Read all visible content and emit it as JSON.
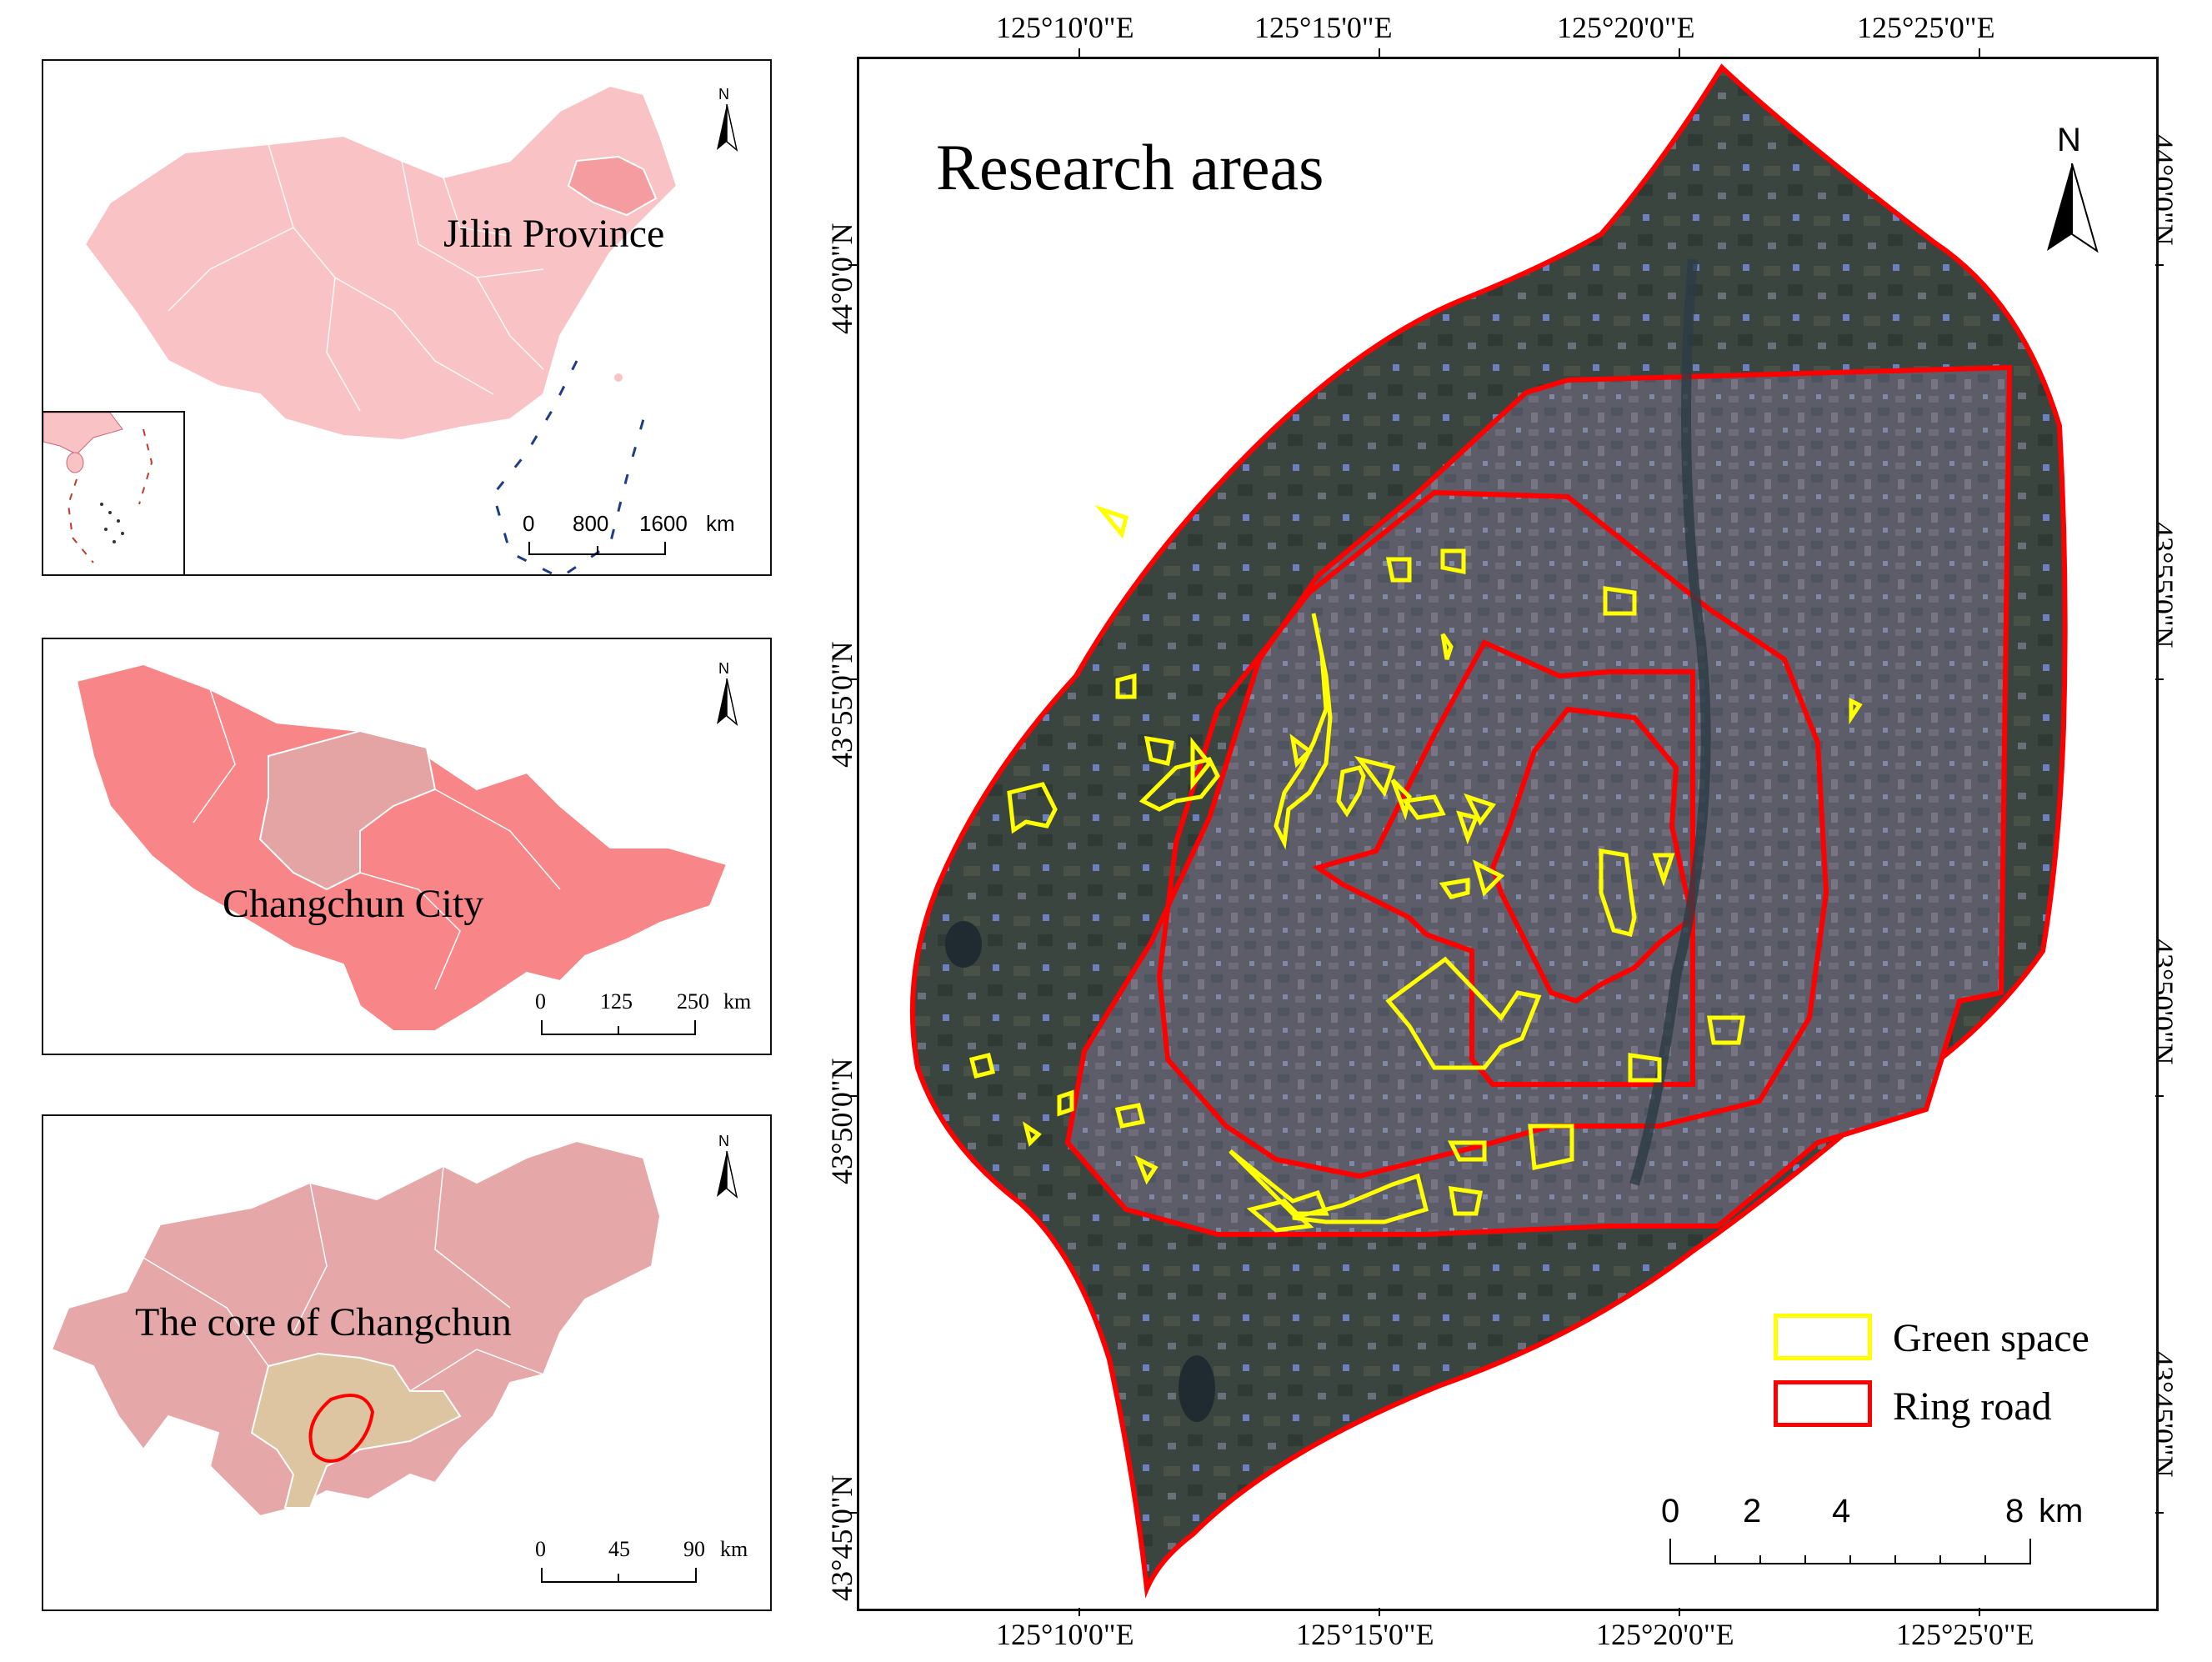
{
  "inset_china": {
    "label": "Jilin Province",
    "north": "N",
    "scale": {
      "ticks": [
        "0",
        "800",
        "1600"
      ],
      "unit": "km"
    }
  },
  "inset_jilin": {
    "label": "Changchun City",
    "north": "N",
    "scale": {
      "ticks": [
        "0",
        "125",
        "250"
      ],
      "unit": "km"
    }
  },
  "inset_changchun": {
    "label": "The core of Changchun",
    "north": "N",
    "scale": {
      "ticks": [
        "0",
        "45",
        "90"
      ],
      "unit": "km"
    }
  },
  "main_map": {
    "title": "Research areas",
    "north": "N",
    "top_ticks": [
      "125°10'0\"E",
      "125°15'0\"E",
      "125°20'0\"E",
      "125°25'0\"E"
    ],
    "bottom_ticks": [
      "125°10'0\"E",
      "125°15'0\"E",
      "125°20'0\"E",
      "125°25'0\"E"
    ],
    "left_ticks": [
      "44°0'0\"N",
      "43°55'0\"N",
      "43°50'0\"N",
      "43°45'0\"N"
    ],
    "right_ticks": [
      "44°0'0\"N",
      "43°55'0\"N",
      "43°50'0\"N",
      "43°45'0\"N"
    ],
    "legend": [
      {
        "label": "Green space",
        "color": "#ffff00"
      },
      {
        "label": "Ring road",
        "color": "#ff0000"
      }
    ],
    "scale": {
      "ticks": [
        "0",
        "2",
        "4",
        "8"
      ],
      "unit": "km"
    }
  },
  "colors": {
    "china_fill": "#f9c3c6",
    "jilin_highlight": "#f49ca0",
    "jilin_fill": "#f88587",
    "changchun_in_jilin": "#e4a4a4",
    "changchun_fill": "#e5a7a8",
    "core_fill": "#dcc5a0",
    "boundary": "#ff0000",
    "green_space": "#ffff00"
  }
}
